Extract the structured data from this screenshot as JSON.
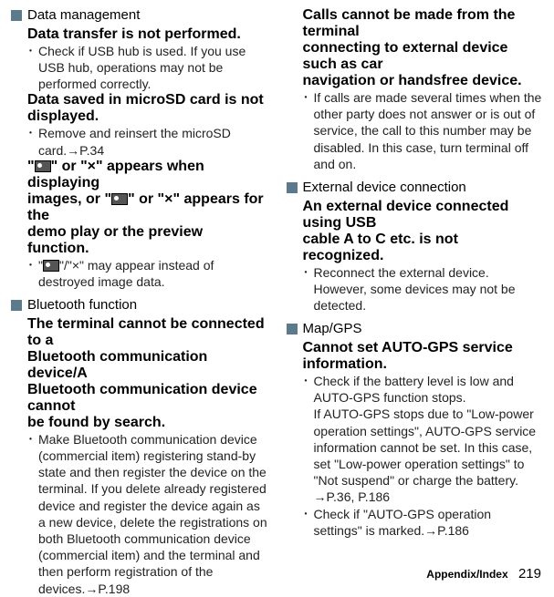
{
  "colors": {
    "square_data": "#5b7a8c",
    "square_bt": "#5b7a8c",
    "square_ext": "#5b7a8c",
    "square_map": "#5b7a8c"
  },
  "left": {
    "s1_title": "Data management",
    "s1_b1": "Data transfer is not performed.",
    "s1_p1": "Check if USB hub is used. If you use USB hub, operations may not be performed correctly.",
    "s1_b2a": "Data saved in microSD card is not",
    "s1_b2b": "displayed.",
    "s1_p2": "Remove and reinsert the microSD card.→P.34",
    "s1_b3a_pre": "\"",
    "s1_b3a_post": "\" or \"×\" appears when displaying",
    "s1_b3b_pre": "images, or \"",
    "s1_b3b_post": "\" or \"×\" appears for the",
    "s1_b3c": "demo play or the preview function.",
    "s1_p3_pre": "\"",
    "s1_p3_post": "\"/\"×\" may appear instead of destroyed image data.",
    "s2_title": "Bluetooth function",
    "s2_b1a": "The terminal cannot be connected to a",
    "s2_b1b": "Bluetooth communication device/A",
    "s2_b1c": "Bluetooth communication device cannot",
    "s2_b1d": "be found by search.",
    "s2_p1": "Make Bluetooth communication device (commercial item) registering stand-by state and then register the device on the terminal. If you delete already registered device and register the device again as a new device, delete the registrations on both Bluetooth communication device (commercial item) and the terminal and then perform registration of the devices.→P.198"
  },
  "right": {
    "r0a": "Calls cannot be made from the terminal",
    "r0b": "connecting to external device such as car",
    "r0c": "navigation or handsfree device.",
    "r0_p1": "If calls are made several times when the other party does not answer or is out of service, the call to this number may be disabled. In this case, turn terminal off and on.",
    "s3_title": "External device connection",
    "s3_b1a": "An external device connected using USB",
    "s3_b1b": "cable A to C etc. is not recognized.",
    "s3_p1": "Reconnect the external device. However, some devices may not be detected.",
    "s4_title": "Map/GPS",
    "s4_b1a": "Cannot set AUTO-GPS service",
    "s4_b1b": "information.",
    "s4_p1": "Check if the battery level is low and AUTO-GPS function stops.",
    "s4_p1b": "If AUTO-GPS stops due to \"Low-power operation settings\", AUTO-GPS service information cannot be set. In this case, set \"Low-power operation settings\" to \"Not suspend\" or charge the battery. →P.36, P.186",
    "s4_p2": "Check if \"AUTO-GPS operation settings\" is marked.→P.186"
  },
  "footer_label": "Appendix/Index",
  "footer_page": "219"
}
